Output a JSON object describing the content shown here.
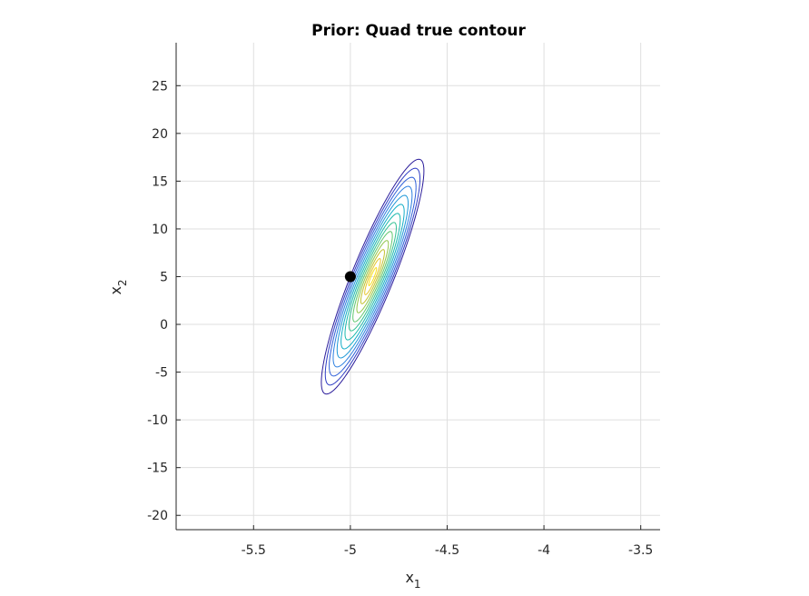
{
  "chart_data": {
    "type": "contour",
    "title": "Prior: Quad true contour",
    "xlabel": {
      "base": "x",
      "sub": "1"
    },
    "ylabel": {
      "base": "x",
      "sub": "2"
    },
    "xlim": [
      -5.9,
      -3.4
    ],
    "ylim": [
      -21.5,
      29.5
    ],
    "xticks": [
      -5.5,
      -5,
      -4.5,
      -4,
      -3.5
    ],
    "xtick_labels": [
      "-5.5",
      "-5",
      "-4.5",
      "-4",
      "-3.5"
    ],
    "yticks": [
      25,
      20,
      15,
      10,
      5,
      0,
      -5,
      -10,
      -15,
      -20
    ],
    "ytick_labels": [
      "25",
      "20",
      "15",
      "10",
      "5",
      "0",
      "-5",
      "-10",
      "-15",
      "-20"
    ],
    "grid": true,
    "colormap": "parula",
    "distribution": {
      "center": [
        -4.885,
        5.0
      ],
      "outer_contour_x_range": [
        -5.15,
        -4.62
      ],
      "outer_contour_y_range": [
        -7.3,
        17.3
      ]
    },
    "contour_levels": 13,
    "level_colors": [
      "#2a1b9a",
      "#2f3dc4",
      "#2f5fd8",
      "#2d7fe0",
      "#1f98d8",
      "#13adc6",
      "#1ab8ad",
      "#34c193",
      "#60c76f",
      "#92c64c",
      "#c2c22f",
      "#e6c52a",
      "#f8e01f"
    ],
    "marker": {
      "x": -5.0,
      "y": 5.0,
      "color": "#000000"
    }
  }
}
